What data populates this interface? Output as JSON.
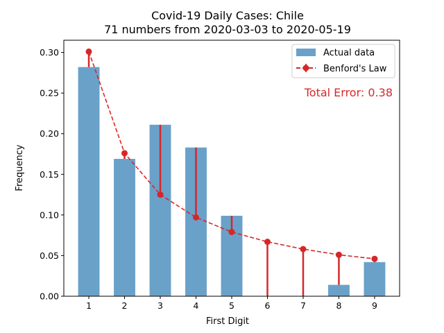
{
  "chart_data": {
    "type": "bar",
    "title": "Covid-19 Daily Cases: Chile",
    "subtitle": "71 numbers from 2020-03-03 to 2020-05-19",
    "xlabel": "First Digit",
    "ylabel": "Frequency",
    "categories": [
      "1",
      "2",
      "3",
      "4",
      "5",
      "6",
      "7",
      "8",
      "9"
    ],
    "x": [
      1,
      2,
      3,
      4,
      5,
      6,
      7,
      8,
      9
    ],
    "ylim": [
      0,
      0.315
    ],
    "xlim": [
      0.3,
      9.7
    ],
    "yticks": [
      "0.00",
      "0.05",
      "0.10",
      "0.15",
      "0.20",
      "0.25",
      "0.30"
    ],
    "ytick_values": [
      0,
      0.05,
      0.1,
      0.15,
      0.2,
      0.25,
      0.3
    ],
    "grid": false,
    "legend_position": "top-right",
    "series": [
      {
        "name": "Actual data",
        "kind": "bar",
        "color": "#6aa1c9",
        "values": [
          0.282,
          0.169,
          0.211,
          0.183,
          0.099,
          0.0,
          0.0,
          0.014,
          0.042
        ]
      },
      {
        "name": "Benford's Law",
        "kind": "line",
        "style": "dashed",
        "marker": "circle",
        "color": "#d62728",
        "values": [
          0.301,
          0.176,
          0.125,
          0.097,
          0.079,
          0.067,
          0.058,
          0.051,
          0.046
        ]
      }
    ],
    "annotation": {
      "text": "Total Error: 0.38",
      "color": "#d62728",
      "position": "top-right"
    }
  }
}
